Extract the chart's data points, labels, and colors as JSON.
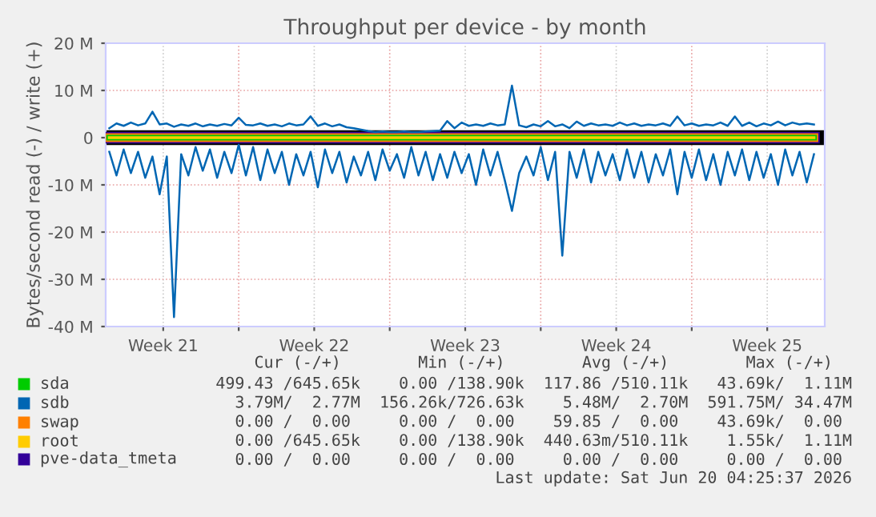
{
  "chart_data": {
    "type": "line",
    "title": "Throughput per device - by month",
    "ylabel": "Bytes/second read (-) / write (+)",
    "xlim": [
      "2026-05-18T20:00",
      "2026-06-21T04:00"
    ],
    "xticks": [
      {
        "value": "2026-05-21T12:00",
        "label": "Week 21"
      },
      {
        "value": "2026-05-25T00:00",
        "label": null
      },
      {
        "value": "2026-05-28T12:00",
        "label": "Week 22"
      },
      {
        "value": "2026-06-01T00:00",
        "label": null
      },
      {
        "value": "2026-06-04T12:00",
        "label": "Week 23"
      },
      {
        "value": "2026-06-08T00:00",
        "label": null
      },
      {
        "value": "2026-06-11T12:00",
        "label": "Week 24"
      },
      {
        "value": "2026-06-15T00:00",
        "label": null
      },
      {
        "value": "2026-06-18T12:00",
        "label": "Week 25"
      }
    ],
    "ylim": [
      -40000000,
      20000000
    ],
    "yticks": [
      {
        "value": -40000000,
        "label": "-40 M"
      },
      {
        "value": -30000000,
        "label": "-30 M"
      },
      {
        "value": -20000000,
        "label": "-20 M"
      },
      {
        "value": -10000000,
        "label": "-10 M"
      },
      0,
      {
        "value": 10000000,
        "label": "10 M"
      },
      {
        "value": 20000000,
        "label": "20 M"
      }
    ],
    "grid": true,
    "legend": "bottom",
    "ref_lines": [
      {
        "axis": "y",
        "value": 0,
        "label": null,
        "color": "#000000",
        "line_style": "solid"
      }
    ],
    "x": [
      "2026-05-19T00:00",
      "2026-05-19T08:00",
      "2026-05-19T16:00",
      "2026-05-20T00:00",
      "2026-05-20T08:00",
      "2026-05-20T16:00",
      "2026-05-21T00:00",
      "2026-05-21T08:00",
      "2026-05-21T16:00",
      "2026-05-22T00:00",
      "2026-05-22T08:00",
      "2026-05-22T16:00",
      "2026-05-23T00:00",
      "2026-05-23T08:00",
      "2026-05-23T16:00",
      "2026-05-24T00:00",
      "2026-05-24T08:00",
      "2026-05-24T16:00",
      "2026-05-25T00:00",
      "2026-05-25T08:00",
      "2026-05-25T16:00",
      "2026-05-26T00:00",
      "2026-05-26T08:00",
      "2026-05-26T16:00",
      "2026-05-27T00:00",
      "2026-05-27T08:00",
      "2026-05-27T16:00",
      "2026-05-28T00:00",
      "2026-05-28T08:00",
      "2026-05-28T16:00",
      "2026-05-29T00:00",
      "2026-05-29T08:00",
      "2026-05-29T16:00",
      "2026-05-30T00:00",
      "2026-05-30T08:00",
      "2026-05-30T16:00",
      "2026-05-31T00:00",
      "2026-05-31T08:00",
      "2026-05-31T16:00",
      "2026-06-01T00:00",
      "2026-06-01T08:00",
      "2026-06-01T16:00",
      "2026-06-02T00:00",
      "2026-06-02T08:00",
      "2026-06-02T16:00",
      "2026-06-03T00:00",
      "2026-06-03T08:00",
      "2026-06-03T16:00",
      "2026-06-04T00:00",
      "2026-06-04T08:00",
      "2026-06-04T16:00",
      "2026-06-05T00:00",
      "2026-06-05T08:00",
      "2026-06-05T16:00",
      "2026-06-06T00:00",
      "2026-06-06T08:00",
      "2026-06-06T16:00",
      "2026-06-07T00:00",
      "2026-06-07T08:00",
      "2026-06-07T16:00",
      "2026-06-08T00:00",
      "2026-06-08T08:00",
      "2026-06-08T16:00",
      "2026-06-09T00:00",
      "2026-06-09T08:00",
      "2026-06-09T16:00",
      "2026-06-10T00:00",
      "2026-06-10T08:00",
      "2026-06-10T16:00",
      "2026-06-11T00:00",
      "2026-06-11T08:00",
      "2026-06-11T16:00",
      "2026-06-12T00:00",
      "2026-06-12T08:00",
      "2026-06-12T16:00",
      "2026-06-13T00:00",
      "2026-06-13T08:00",
      "2026-06-13T16:00",
      "2026-06-14T00:00",
      "2026-06-14T08:00",
      "2026-06-14T16:00",
      "2026-06-15T00:00",
      "2026-06-15T08:00",
      "2026-06-15T16:00",
      "2026-06-16T00:00",
      "2026-06-16T08:00",
      "2026-06-16T16:00",
      "2026-06-17T00:00",
      "2026-06-17T08:00",
      "2026-06-17T16:00",
      "2026-06-18T00:00",
      "2026-06-18T08:00",
      "2026-06-18T16:00",
      "2026-06-19T00:00",
      "2026-06-19T08:00",
      "2026-06-19T16:00",
      "2026-06-20T00:00",
      "2026-06-20T08:00",
      "2026-06-20T16:00"
    ],
    "series": [
      {
        "name": "pve-data_tmeta",
        "color": "#330099",
        "x": [
          "2026-05-19T00:00",
          "2026-06-20T16:00"
        ],
        "values": [
          0,
          0
        ]
      },
      {
        "name": "swap",
        "color": "#ff8000",
        "x": [
          "2026-05-19T00:00",
          "2026-06-20T16:00"
        ],
        "values": [
          0,
          0
        ]
      },
      {
        "name": "sda",
        "color": "#00cc00",
        "x": [
          "2026-05-19T00:00",
          "2026-06-20T16:00"
        ],
        "values": [
          0,
          0
        ]
      },
      {
        "name": "root",
        "color": "#ffcc00",
        "x": [
          "2026-05-19T00:00",
          "2026-06-20T16:00"
        ],
        "values": [
          0,
          0
        ]
      },
      {
        "name": "sdb",
        "color": "#0066b3",
        "values": [
          2000000,
          3000000,
          2500000,
          3200000,
          2600000,
          3000000,
          5500000,
          2800000,
          3000000,
          2300000,
          2800000,
          2500000,
          3000000,
          2400000,
          2800000,
          2500000,
          2900000,
          2600000,
          4200000,
          2700000,
          2600000,
          3000000,
          2500000,
          2800000,
          2400000,
          3000000,
          2600000,
          2800000,
          4500000,
          2500000,
          3000000,
          2400000,
          2800000,
          2200000,
          2000000,
          1700000,
          1400000,
          1200000,
          1300000,
          1200000,
          1200000,
          1300000,
          1200000,
          1200000,
          1300000,
          1400000,
          1500000,
          3500000,
          2000000,
          3200000,
          2500000,
          2800000,
          2500000,
          3000000,
          2600000,
          2800000,
          11000000,
          2600000,
          2200000,
          2800000,
          2400000,
          3500000,
          2400000,
          2800000,
          2000000,
          3400000,
          2500000,
          3000000,
          2600000,
          2800000,
          2500000,
          3200000,
          2600000,
          3000000,
          2500000,
          2800000,
          2600000,
          3000000,
          2500000,
          4500000,
          2600000,
          3000000,
          2500000,
          2800000,
          2600000,
          3200000,
          2500000,
          4500000,
          2500000,
          3200000,
          2400000,
          3000000,
          2600000,
          3400000,
          2600000,
          3200000,
          2800000,
          3000000,
          2800000
        ]
      },
      {
        "color": "#0066b3",
        "values": [
          -3000000,
          -8000000,
          -2500000,
          -7500000,
          -3000000,
          -8500000,
          -4000000,
          -12000000,
          -4000000,
          -38000000,
          -3500000,
          -8000000,
          -2000000,
          -7000000,
          -2500000,
          -8500000,
          -3000000,
          -7500000,
          -1500000,
          -8000000,
          -2000000,
          -9000000,
          -2500000,
          -7500000,
          -3000000,
          -10000000,
          -3500000,
          -8000000,
          -3000000,
          -10500000,
          -2500000,
          -7500000,
          -3000000,
          -9500000,
          -4000000,
          -8000000,
          -3000000,
          -9000000,
          -2500000,
          -7000000,
          -3500000,
          -8500000,
          -2000000,
          -8000000,
          -3000000,
          -9000000,
          -3500000,
          -8500000,
          -3000000,
          -7500000,
          -3500000,
          -10000000,
          -2500000,
          -8000000,
          -3000000,
          -9000000,
          -15500000,
          -7500000,
          -4000000,
          -8000000,
          -2000000,
          -9000000,
          -3000000,
          -25000000,
          -3000000,
          -8500000,
          -2500000,
          -9500000,
          -3000000,
          -8000000,
          -3500000,
          -9000000,
          -2500000,
          -8500000,
          -3000000,
          -9500000,
          -3500000,
          -8000000,
          -2500000,
          -12000000,
          -3000000,
          -8500000,
          -2500000,
          -9000000,
          -3500000,
          -10000000,
          -3000000,
          -8000000,
          -2500000,
          -9000000,
          -3000000,
          -8500000,
          -3500000,
          -10000000,
          -2500000,
          -8000000,
          -3000000,
          -9500000,
          -3500000
        ]
      }
    ],
    "annotations": [
      "    Cur (-/+)        Min (-/+)        Avg (-/+)        Max (-/+)  ",
      "499.43 /645.65k    0.00 /138.90k  117.86 /510.11k   43.69k/  1.11M",
      "  3.79M/  2.77M  156.26k/726.63k    5.48M/  2.70M  591.75M/ 34.47M",
      "  0.00 /  0.00     0.00 /  0.00    59.85 /  0.00    43.69k/  0.00 ",
      "  0.00 /645.65k    0.00 /138.90k  440.63m/510.11k    1.55k/  1.11M",
      "  0.00 /  0.00     0.00 /  0.00     0.00 /  0.00     0.00 /  0.00 ",
      "Last update: Sat Jun 20 04:25:37 2026"
    ]
  }
}
